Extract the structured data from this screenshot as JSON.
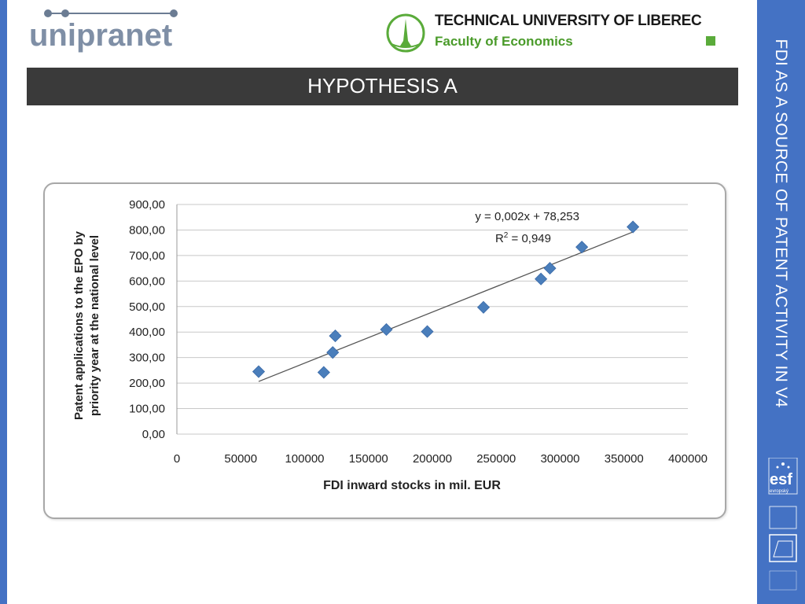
{
  "header": {
    "logo_left_text": "unipranet",
    "university": "TECHNICAL UNIVERSITY OF LIBEREC",
    "faculty": "Faculty of Economics"
  },
  "banner": {
    "title": "HYPOTHESIS A"
  },
  "side_title": "FDI AS A SOURCE OF PATENT ACTIVITY IN V4",
  "esf": {
    "logo_text": "esf",
    "caption": "evropský"
  },
  "colors": {
    "accent_blue": "#4472c4",
    "banner_dark": "#3a3a3a",
    "marker": "#4a7ebb",
    "tul_green": "#4a9b2a"
  },
  "chart_data": {
    "type": "scatter",
    "title": "",
    "xlabel": "FDI inward stocks in mil. EUR",
    "ylabel_line1": "Patent applications to the EPO by",
    "ylabel_line2": "priority year at the national level",
    "xlim": [
      0,
      400000
    ],
    "ylim": [
      0,
      900
    ],
    "x_ticks": [
      0,
      50000,
      100000,
      150000,
      200000,
      250000,
      300000,
      350000,
      400000
    ],
    "x_tick_labels": [
      "0",
      "50000",
      "100000",
      "150000",
      "200000",
      "250000",
      "300000",
      "350000",
      "400000"
    ],
    "y_ticks": [
      0,
      100,
      200,
      300,
      400,
      500,
      600,
      700,
      800,
      900
    ],
    "y_tick_labels": [
      "0,00",
      "100,00",
      "200,00",
      "300,00",
      "400,00",
      "500,00",
      "600,00",
      "700,00",
      "800,00",
      "900,00"
    ],
    "grid": true,
    "points": [
      {
        "x": 64000,
        "y": 245
      },
      {
        "x": 115000,
        "y": 242
      },
      {
        "x": 122000,
        "y": 320
      },
      {
        "x": 124000,
        "y": 385
      },
      {
        "x": 164000,
        "y": 410
      },
      {
        "x": 196000,
        "y": 402
      },
      {
        "x": 240000,
        "y": 497
      },
      {
        "x": 285000,
        "y": 608
      },
      {
        "x": 292000,
        "y": 650
      },
      {
        "x": 317000,
        "y": 733
      },
      {
        "x": 357000,
        "y": 812
      }
    ],
    "trendline": {
      "slope": 0.002,
      "intercept": 78.253,
      "x_range": [
        64000,
        357000
      ],
      "equation": "y = 0,002x + 78,253",
      "r2_prefix": "R",
      "r2_sup": "2",
      "r2_value": " = 0,949"
    }
  }
}
